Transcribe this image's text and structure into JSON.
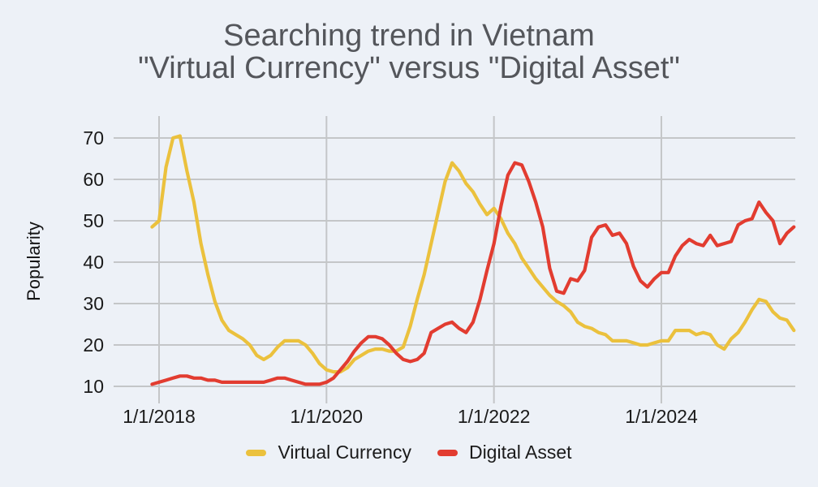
{
  "title": {
    "line1": "Searching trend in Vietnam",
    "line2": "\"Virtual Currency\" versus \"Digital Asset\""
  },
  "axes": {
    "y_title": "Popularity",
    "y_ticks": [
      10,
      20,
      30,
      40,
      50,
      60,
      70
    ],
    "x_ticks": [
      {
        "label": "1/1/2018",
        "month_index": 1
      },
      {
        "label": "1/1/2020",
        "month_index": 25
      },
      {
        "label": "1/1/2022",
        "month_index": 49
      },
      {
        "label": "1/1/2024",
        "month_index": 73
      }
    ]
  },
  "colors": {
    "background": "#EDF1F7",
    "gridline": "#C4C6C8",
    "title_text": "#54565B",
    "tick_text": "#1A1A1A",
    "virtual_currency": "#EBC13D",
    "digital_asset": "#E23C30"
  },
  "chart_data": {
    "type": "line",
    "title": "Searching trend in Vietnam \"Virtual Currency\" versus \"Digital Asset\"",
    "xlabel": "",
    "ylabel": "Popularity",
    "ylim": [
      10,
      70
    ],
    "grid": true,
    "legend_position": "bottom",
    "x_unit": "month",
    "x_start": "2017-12",
    "x_end": "2025-08",
    "x_tick_labels": [
      "1/1/2018",
      "1/1/2020",
      "1/1/2022",
      "1/1/2024"
    ],
    "series": [
      {
        "name": "Virtual Currency",
        "color": "#EBC13D",
        "values": [
          48.5,
          50,
          63,
          70,
          70.5,
          62,
          54.5,
          44.5,
          37,
          30.5,
          26,
          23.5,
          22.5,
          21.5,
          20,
          17.5,
          16.5,
          17.5,
          19.5,
          21,
          21,
          21,
          20,
          18,
          15.5,
          14,
          13.5,
          13.5,
          14.5,
          16.5,
          17.5,
          18.5,
          19,
          19,
          18.5,
          18.5,
          19.5,
          24.5,
          31,
          37,
          44.5,
          52,
          59.5,
          64,
          62,
          59,
          57,
          54,
          51.5,
          53,
          50.5,
          47,
          44.5,
          41,
          38.5,
          36,
          34,
          32,
          30.5,
          29.5,
          28,
          25.5,
          24.5,
          24,
          23,
          22.5,
          21,
          21,
          21,
          20.5,
          20,
          20,
          20.5,
          21,
          21,
          23.5,
          23.5,
          23.5,
          22.5,
          23,
          22.5,
          20,
          19,
          21.5,
          23,
          25.5,
          28.5,
          31,
          30.5,
          28,
          26.5,
          26,
          23.5
        ]
      },
      {
        "name": "Digital Asset",
        "color": "#E23C30",
        "values": [
          10.5,
          11,
          11.5,
          12,
          12.5,
          12.5,
          12,
          12,
          11.5,
          11.5,
          11,
          11,
          11,
          11,
          11,
          11,
          11,
          11.5,
          12,
          12,
          11.5,
          11,
          10.5,
          10.5,
          10.5,
          11,
          12,
          14,
          16,
          18.5,
          20.5,
          22,
          22,
          21.5,
          20,
          18,
          16.5,
          16,
          16.5,
          18,
          23,
          24,
          25,
          25.5,
          24,
          23,
          25.5,
          31,
          38,
          44.5,
          53.5,
          61,
          64,
          63.5,
          59.5,
          54.5,
          48.5,
          38.5,
          33,
          32.5,
          36,
          35.5,
          38,
          46,
          48.5,
          49,
          46.5,
          47,
          44.5,
          39,
          35.5,
          34,
          36,
          37.5,
          37.5,
          41.5,
          44,
          45.5,
          44.5,
          44,
          46.5,
          44,
          44.5,
          45,
          49,
          50,
          50.5,
          54.5,
          52,
          50,
          44.5,
          47,
          48.5
        ]
      }
    ]
  }
}
